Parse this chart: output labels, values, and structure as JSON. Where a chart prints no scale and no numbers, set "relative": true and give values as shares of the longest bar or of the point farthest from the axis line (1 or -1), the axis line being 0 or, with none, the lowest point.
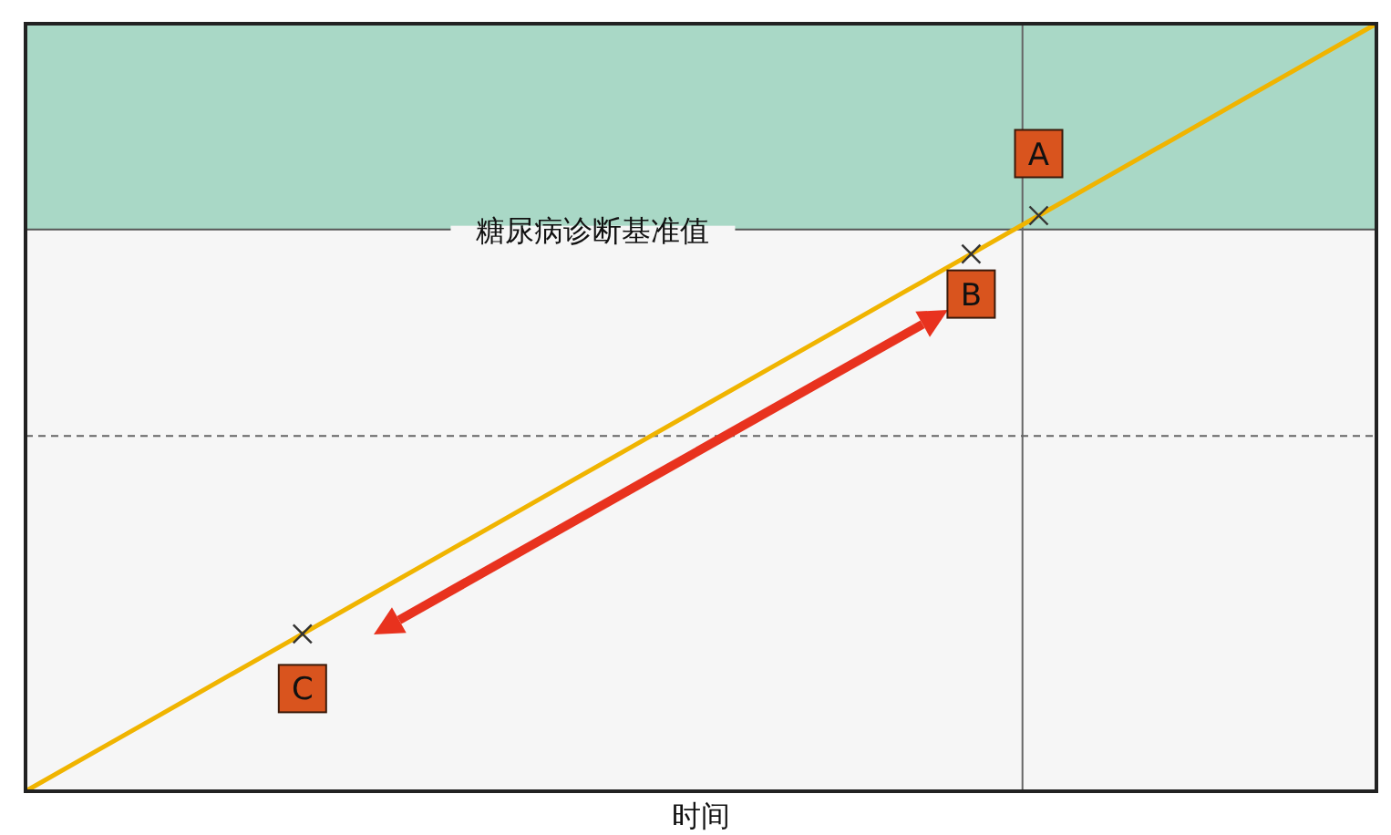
{
  "chart_data": {
    "type": "line",
    "relative": true,
    "xlabel": "时间",
    "categories": [
      null,
      null,
      null,
      null,
      null,
      null,
      null,
      null,
      null,
      null,
      null,
      null,
      null,
      null,
      null,
      null,
      null,
      null,
      null,
      null,
      null
    ],
    "series": [
      {
        "color": "#f0b400",
        "values": [
          0,
          0.05,
          0.1,
          0.15,
          0.2,
          0.25,
          0.3,
          0.35,
          0.4,
          0.45,
          0.5,
          0.55,
          0.6,
          0.65,
          0.7,
          0.75,
          0.8,
          0.85,
          0.9,
          0.95,
          1
        ]
      }
    ],
    "ref_lines": [
      {
        "axis": "y",
        "value": 0.732,
        "label": "糖尿病诊断基准值",
        "color": "#555555",
        "line_style": "solid"
      },
      {
        "axis": "y",
        "value": 0.463,
        "color": "#666666",
        "line_style": "dashed"
      }
    ],
    "bands": [
      {
        "axis": "y",
        "from": 0.732,
        "to": 1,
        "color": "#a9d8c6"
      }
    ],
    "annotations": [
      "A",
      "B",
      "C"
    ]
  }
}
